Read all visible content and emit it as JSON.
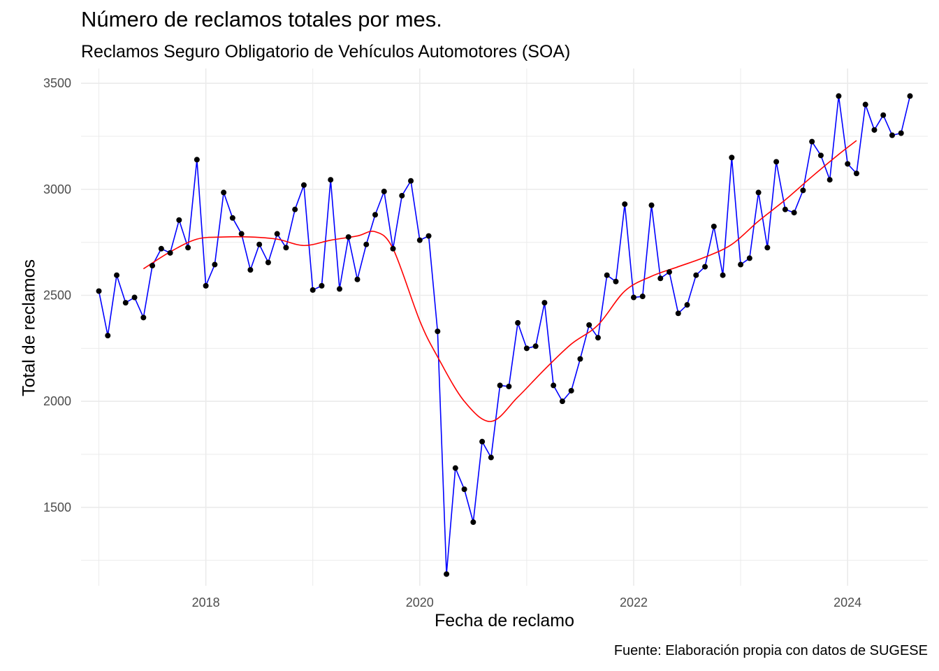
{
  "chart_data": {
    "type": "line",
    "title": "Número de reclamos totales por mes.",
    "subtitle": "Reclamos Seguro Obligatorio de Vehículos Automotores (SOA)",
    "xlabel": "Fecha de reclamo",
    "ylabel": "Total de reclamos",
    "caption": "Fuente: Elaboración propia con datos de SUGESE",
    "x_ticks": [
      "2018",
      "2020",
      "2022",
      "2024"
    ],
    "y_ticks": [
      "1500",
      "2000",
      "2500",
      "3000",
      "3500"
    ],
    "ylim": [
      1130,
      3570
    ],
    "xlim": [
      "2016-11",
      "2024-10"
    ],
    "grid": true,
    "legend": "none",
    "colors": {
      "line": "#0000ff",
      "points": "#000000",
      "smooth": "#ff0000",
      "grid": "#ebebeb"
    },
    "series": [
      {
        "type": "line+points",
        "x": [
          "2017-01",
          "2017-02",
          "2017-03",
          "2017-04",
          "2017-05",
          "2017-06",
          "2017-07",
          "2017-08",
          "2017-09",
          "2017-10",
          "2017-11",
          "2017-12",
          "2018-01",
          "2018-02",
          "2018-03",
          "2018-04",
          "2018-05",
          "2018-06",
          "2018-07",
          "2018-08",
          "2018-09",
          "2018-10",
          "2018-11",
          "2018-12",
          "2019-01",
          "2019-02",
          "2019-03",
          "2019-04",
          "2019-05",
          "2019-06",
          "2019-07",
          "2019-08",
          "2019-09",
          "2019-10",
          "2019-11",
          "2019-12",
          "2020-01",
          "2020-02",
          "2020-03",
          "2020-04",
          "2020-05",
          "2020-06",
          "2020-07",
          "2020-08",
          "2020-09",
          "2020-10",
          "2020-11",
          "2020-12",
          "2021-01",
          "2021-02",
          "2021-03",
          "2021-04",
          "2021-05",
          "2021-06",
          "2021-07",
          "2021-08",
          "2021-09",
          "2021-10",
          "2021-11",
          "2021-12",
          "2022-01",
          "2022-02",
          "2022-03",
          "2022-04",
          "2022-05",
          "2022-06",
          "2022-07",
          "2022-08",
          "2022-09",
          "2022-10",
          "2022-11",
          "2022-12",
          "2023-01",
          "2023-02",
          "2023-03",
          "2023-04",
          "2023-05",
          "2023-06",
          "2023-07",
          "2023-08",
          "2023-09",
          "2023-10",
          "2023-11",
          "2023-12",
          "2024-01",
          "2024-02",
          "2024-03",
          "2024-04",
          "2024-05",
          "2024-06",
          "2024-07",
          "2024-08"
        ],
        "values": [
          2520,
          2310,
          2595,
          2465,
          2490,
          2395,
          2640,
          2720,
          2700,
          2855,
          2725,
          3140,
          2545,
          2645,
          2985,
          2865,
          2790,
          2620,
          2740,
          2655,
          2790,
          2725,
          2905,
          3020,
          2525,
          2545,
          3045,
          2530,
          2775,
          2575,
          2740,
          2880,
          2990,
          2720,
          2970,
          3040,
          2760,
          2780,
          2330,
          1185,
          1685,
          1585,
          1430,
          1810,
          1735,
          2075,
          2070,
          2370,
          2250,
          2260,
          2465,
          2075,
          2000,
          2050,
          2200,
          2360,
          2300,
          2595,
          2565,
          2930,
          2490,
          2495,
          2925,
          2580,
          2610,
          2415,
          2455,
          2595,
          2635,
          2825,
          2595,
          3150,
          2645,
          2675,
          2985,
          2725,
          3130,
          2905,
          2890,
          2995,
          3225,
          3160,
          3045,
          3440,
          3120,
          3075,
          3400,
          3280,
          3350,
          3255,
          3265,
          3440
        ]
      },
      {
        "type": "smooth",
        "x": [
          "2017-06",
          "2017-09",
          "2017-12",
          "2018-03",
          "2018-06",
          "2018-09",
          "2018-12",
          "2019-03",
          "2019-06",
          "2019-08",
          "2019-10",
          "2020-01",
          "2020-03",
          "2020-06",
          "2020-09",
          "2020-12",
          "2021-03",
          "2021-06",
          "2021-09",
          "2021-12",
          "2022-03",
          "2022-06",
          "2022-09",
          "2022-12",
          "2023-03",
          "2023-06",
          "2023-09",
          "2023-12",
          "2024-02"
        ],
        "values": [
          2625,
          2705,
          2765,
          2775,
          2775,
          2765,
          2735,
          2760,
          2780,
          2800,
          2720,
          2380,
          2210,
          2000,
          1905,
          2020,
          2150,
          2270,
          2360,
          2520,
          2590,
          2635,
          2680,
          2740,
          2850,
          2950,
          3060,
          3165,
          3230
        ]
      }
    ]
  }
}
